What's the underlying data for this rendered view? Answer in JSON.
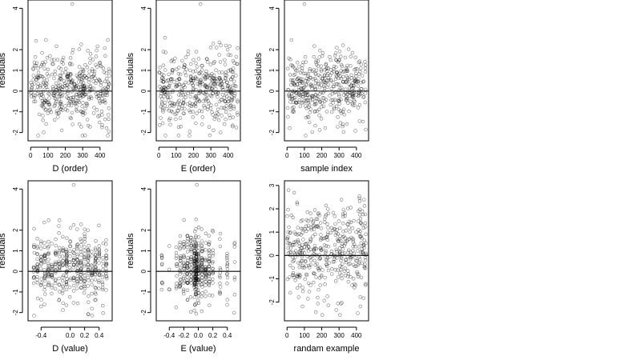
{
  "chart_data": [
    {
      "type": "scatter",
      "title": "",
      "xlabel": "D (order)",
      "ylabel": "residuals",
      "xlim": [
        -15,
        470
      ],
      "ylim": [
        -2.4,
        4.4
      ],
      "xticks": [
        0,
        100,
        200,
        300,
        400
      ],
      "yticks": [
        -2,
        -1,
        0,
        1,
        2,
        4
      ],
      "hline": 0,
      "grid": false,
      "seed": 11,
      "n_points": 440,
      "point_distribution": "uniform-index",
      "outlier": {
        "x": 240,
        "y": 4.2
      }
    },
    {
      "type": "scatter",
      "title": "",
      "xlabel": "E (order)",
      "ylabel": "residuals",
      "xlim": [
        -15,
        470
      ],
      "ylim": [
        -2.4,
        4.4
      ],
      "xticks": [
        0,
        100,
        200,
        300,
        400
      ],
      "yticks": [
        -2,
        -1,
        0,
        1,
        2,
        4
      ],
      "hline": 0,
      "grid": false,
      "seed": 23,
      "n_points": 440,
      "point_distribution": "uniform-index",
      "outlier": {
        "x": 240,
        "y": 4.2
      }
    },
    {
      "type": "scatter",
      "title": "",
      "xlabel": "sample index",
      "ylabel": "residuals",
      "xlim": [
        -15,
        470
      ],
      "ylim": [
        -2.4,
        4.4
      ],
      "xticks": [
        0,
        100,
        200,
        300,
        400
      ],
      "yticks": [
        -2,
        -1,
        0,
        1,
        2,
        4
      ],
      "hline": 0,
      "grid": false,
      "seed": 37,
      "n_points": 440,
      "point_distribution": "uniform-index",
      "outlier": {
        "x": 100,
        "y": 4.2
      }
    },
    {
      "type": "scatter",
      "title": "",
      "xlabel": "D (value)",
      "ylabel": "residuals",
      "xlim": [
        -0.58,
        0.58
      ],
      "ylim": [
        -2.4,
        4.4
      ],
      "xticks": [
        -0.4,
        0.0,
        0.2,
        0.4
      ],
      "xtick_labels": [
        "-0.4",
        "0.0",
        "0.2",
        "0.4"
      ],
      "yticks": [
        -2,
        -1,
        0,
        1,
        2,
        4
      ],
      "hline": 0,
      "grid": false,
      "seed": 53,
      "n_points": 430,
      "point_distribution": "columns",
      "x_columns": [
        -0.5,
        -0.45,
        -0.4,
        -0.35,
        -0.3,
        -0.25,
        -0.2,
        -0.15,
        -0.1,
        -0.05,
        0.0,
        0.05,
        0.1,
        0.15,
        0.2,
        0.25,
        0.3,
        0.35,
        0.4,
        0.45,
        0.5
      ],
      "outlier": {
        "x": 0.05,
        "y": 4.2
      }
    },
    {
      "type": "scatter",
      "title": "",
      "xlabel": "E (value)",
      "ylabel": "residuals",
      "xlim": [
        -0.58,
        0.58
      ],
      "ylim": [
        -2.4,
        4.4
      ],
      "xticks": [
        -0.4,
        -0.2,
        0.0,
        0.2,
        0.4
      ],
      "xtick_labels": [
        "-0.4",
        "-0.2",
        "0.0",
        "0.2",
        "0.4"
      ],
      "yticks": [
        -2,
        -1,
        0,
        1,
        2,
        4
      ],
      "hline": 0,
      "grid": false,
      "seed": 71,
      "n_points": 430,
      "point_distribution": "centered-columns",
      "x_columns": [
        -0.5,
        -0.4,
        -0.3,
        -0.25,
        -0.2,
        -0.15,
        -0.1,
        -0.05,
        -0.03,
        0.0,
        0.05,
        0.1,
        0.15,
        0.2,
        0.3,
        0.4,
        0.5
      ],
      "outlier": {
        "x": -0.02,
        "y": 4.2
      }
    },
    {
      "type": "scatter",
      "title": "",
      "xlabel": "randam example",
      "ylabel": "residuals",
      "xlim": [
        -15,
        470
      ],
      "ylim": [
        -2.8,
        3.2
      ],
      "xticks": [
        0,
        100,
        200,
        300,
        400
      ],
      "yticks": [
        -2,
        -1,
        0,
        1,
        2,
        3
      ],
      "hline": 0,
      "grid": false,
      "seed": 97,
      "n_points": 440,
      "point_distribution": "uniform-wide"
    }
  ]
}
